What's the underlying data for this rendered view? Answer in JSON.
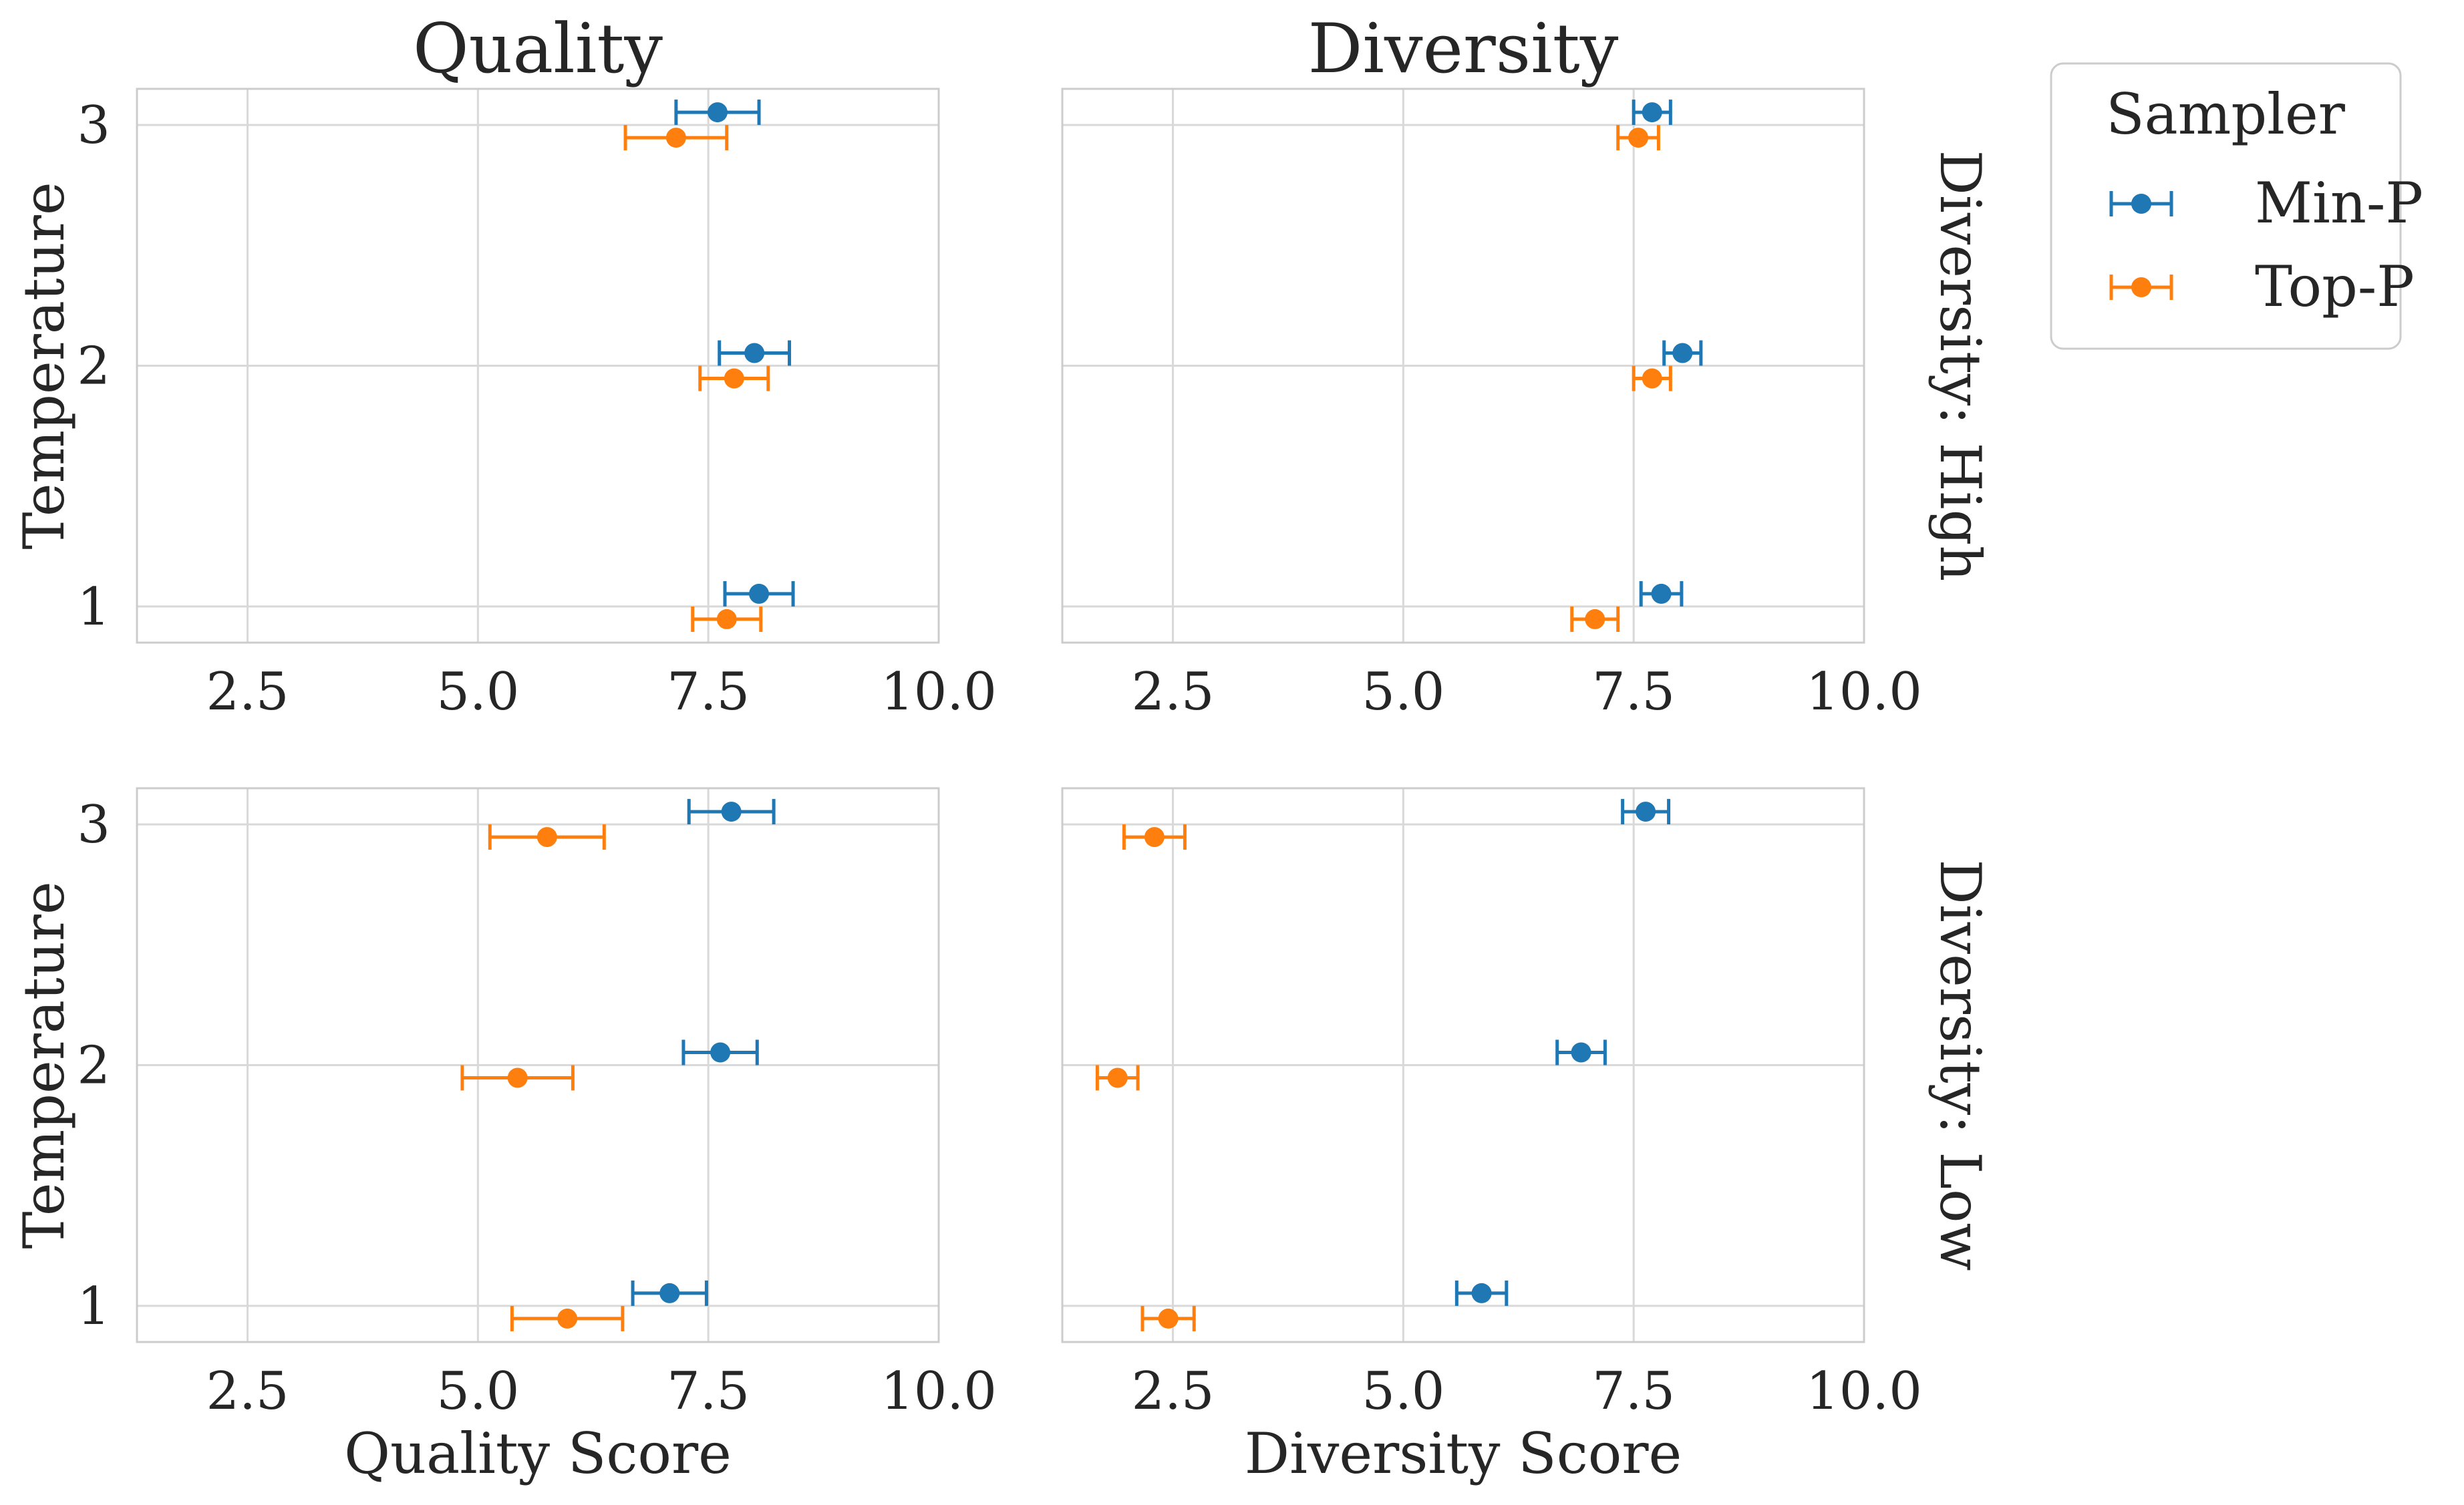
{
  "chart_data": {
    "type": "scatter",
    "orientation": "horizontal",
    "error_bars": true,
    "grid": true,
    "legend": {
      "title": "Sampler",
      "placement": "outside-top-right",
      "entries": [
        {
          "name": "Min-P",
          "color": "#1f77b4"
        },
        {
          "name": "Top-P",
          "color": "#ff7f0e"
        }
      ]
    },
    "column_titles": [
      "Quality",
      "Diversity"
    ],
    "row_labels": [
      "Diversity: High",
      "Diversity: Low"
    ],
    "ylabel": "Temperature",
    "xlabels": [
      "Quality Score",
      "Diversity Score"
    ],
    "xlim": [
      1.3,
      10.0
    ],
    "ylim": [
      0.85,
      3.15
    ],
    "xticks": [
      2.5,
      5.0,
      7.5,
      10.0
    ],
    "xtick_labels": [
      "2.5",
      "5.0",
      "7.5",
      "10.0"
    ],
    "yticks": [
      1,
      2,
      3
    ],
    "ytick_labels": [
      "1",
      "2",
      "3"
    ],
    "panels": [
      {
        "row": 0,
        "col": 0,
        "series": [
          {
            "name": "Min-P",
            "points": [
              {
                "temperature": 3,
                "mean": 7.6,
                "err": 0.45
              },
              {
                "temperature": 2,
                "mean": 8.0,
                "err": 0.38
              },
              {
                "temperature": 1,
                "mean": 8.05,
                "err": 0.37
              }
            ]
          },
          {
            "name": "Top-P",
            "points": [
              {
                "temperature": 3,
                "mean": 7.15,
                "err": 0.55
              },
              {
                "temperature": 2,
                "mean": 7.78,
                "err": 0.37
              },
              {
                "temperature": 1,
                "mean": 7.7,
                "err": 0.37
              }
            ]
          }
        ]
      },
      {
        "row": 0,
        "col": 1,
        "series": [
          {
            "name": "Min-P",
            "points": [
              {
                "temperature": 3,
                "mean": 7.7,
                "err": 0.2
              },
              {
                "temperature": 2,
                "mean": 8.03,
                "err": 0.2
              },
              {
                "temperature": 1,
                "mean": 7.8,
                "err": 0.22
              }
            ]
          },
          {
            "name": "Top-P",
            "points": [
              {
                "temperature": 3,
                "mean": 7.55,
                "err": 0.22
              },
              {
                "temperature": 2,
                "mean": 7.7,
                "err": 0.2
              },
              {
                "temperature": 1,
                "mean": 7.08,
                "err": 0.25
              }
            ]
          }
        ]
      },
      {
        "row": 1,
        "col": 0,
        "series": [
          {
            "name": "Min-P",
            "points": [
              {
                "temperature": 3,
                "mean": 7.75,
                "err": 0.46
              },
              {
                "temperature": 2,
                "mean": 7.63,
                "err": 0.4
              },
              {
                "temperature": 1,
                "mean": 7.08,
                "err": 0.4
              }
            ]
          },
          {
            "name": "Top-P",
            "points": [
              {
                "temperature": 3,
                "mean": 5.75,
                "err": 0.62
              },
              {
                "temperature": 2,
                "mean": 5.43,
                "err": 0.6
              },
              {
                "temperature": 1,
                "mean": 5.97,
                "err": 0.6
              }
            ]
          }
        ]
      },
      {
        "row": 1,
        "col": 1,
        "series": [
          {
            "name": "Min-P",
            "points": [
              {
                "temperature": 3,
                "mean": 7.63,
                "err": 0.25
              },
              {
                "temperature": 2,
                "mean": 6.93,
                "err": 0.26
              },
              {
                "temperature": 1,
                "mean": 5.85,
                "err": 0.27
              }
            ]
          },
          {
            "name": "Top-P",
            "points": [
              {
                "temperature": 3,
                "mean": 2.3,
                "err": 0.33
              },
              {
                "temperature": 2,
                "mean": 1.9,
                "err": 0.22
              },
              {
                "temperature": 1,
                "mean": 2.45,
                "err": 0.28
              }
            ]
          }
        ]
      }
    ]
  }
}
